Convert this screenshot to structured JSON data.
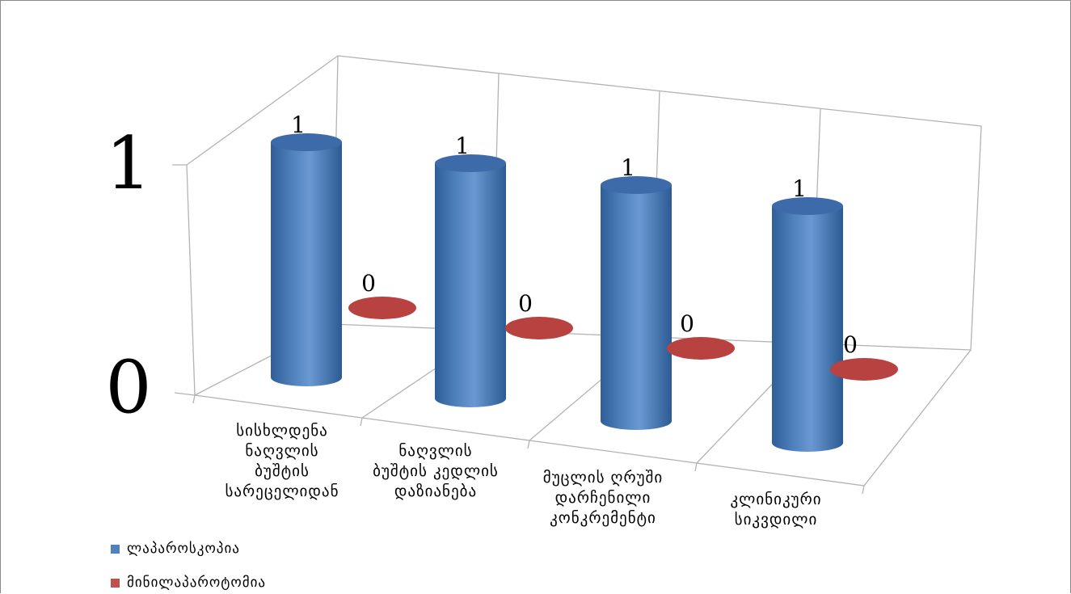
{
  "chart_data": {
    "type": "bar",
    "style": "3d-cylinder",
    "categories": [
      "სისხლდენა ნაღვლის ბუშტის სარეცელიდან",
      "ნაღვლის ბუშტის კედლის დაზიანება",
      "მუცლის ღრუში დარჩენილი კონკრემენტი",
      "კლინიკური სიკვდილი"
    ],
    "category_lines": [
      [
        "სისხლდენა",
        "ნაღვლის",
        "ბუშტის",
        "სარეცელიდან"
      ],
      [
        "ნაღვლის",
        "ბუშტის კედლის",
        "დაზიანება"
      ],
      [
        "მუცლის ღრუში",
        "დარჩენილი",
        "კონკრემენტი"
      ],
      [
        "კლინიკური",
        "სიკვდილი"
      ]
    ],
    "series": [
      {
        "name": "ლაპაროსკოპია",
        "values": [
          1,
          1,
          1,
          1
        ],
        "color": "#4f81bd"
      },
      {
        "name": "მინილაპაროტომია",
        "values": [
          0,
          0,
          0,
          0
        ],
        "color": "#c0504d"
      }
    ],
    "y_ticks": [
      "1",
      "0"
    ],
    "ylim": [
      0,
      1
    ],
    "data_labels": true,
    "grid": true,
    "legend_position": "bottom-left"
  }
}
